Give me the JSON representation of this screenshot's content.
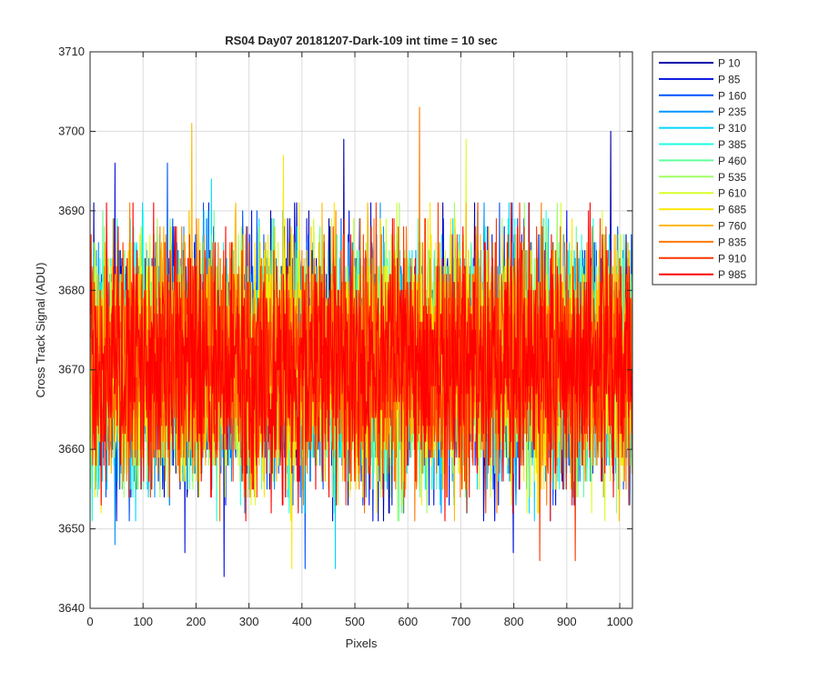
{
  "chart_data": {
    "type": "line",
    "title": "RS04 Day07 20181207-Dark-109 int time = 10 sec",
    "xlabel": "Pixels",
    "ylabel": "Cross Track Signal (ADU)",
    "xlim": [
      0,
      1024
    ],
    "ylim": [
      3640,
      3710
    ],
    "x_ticks": [
      0,
      100,
      200,
      300,
      400,
      500,
      600,
      700,
      800,
      900,
      1000
    ],
    "y_ticks": [
      3640,
      3650,
      3660,
      3670,
      3680,
      3690,
      3700,
      3710
    ],
    "grid": true,
    "legend_position": "outside-right-top",
    "n_points": 1024,
    "series": [
      {
        "name": "P 10",
        "color": "#0000a8",
        "mean": 3671,
        "sd": 7.5,
        "peak_high": [
          [
            478,
            3699
          ],
          [
            982,
            3700
          ]
        ],
        "peak_low": []
      },
      {
        "name": "P 85",
        "color": "#0010e0",
        "mean": 3671,
        "sd": 7.5,
        "peak_high": [
          [
            46,
            3696
          ]
        ],
        "peak_low": [
          [
            252,
            3644
          ],
          [
            178,
            3647
          ],
          [
            798,
            3647
          ]
        ]
      },
      {
        "name": "P 160",
        "color": "#0052ff",
        "mean": 3671,
        "sd": 7.5,
        "peak_high": [
          [
            145,
            3696
          ]
        ],
        "peak_low": [
          [
            405,
            3645
          ]
        ]
      },
      {
        "name": "P 235",
        "color": "#0096ff",
        "mean": 3671,
        "sd": 7.5,
        "peak_high": [],
        "peak_low": [
          [
            46,
            3648
          ]
        ]
      },
      {
        "name": "P 310",
        "color": "#00d7ff",
        "mean": 3671,
        "sd": 7.5,
        "peak_high": [
          [
            228,
            3694
          ]
        ],
        "peak_low": [
          [
            462,
            3645
          ]
        ]
      },
      {
        "name": "P 385",
        "color": "#1cffe3",
        "mean": 3671,
        "sd": 7.5,
        "peak_high": [],
        "peak_low": []
      },
      {
        "name": "P 460",
        "color": "#62ff9d",
        "mean": 3671,
        "sd": 7.5,
        "peak_high": [],
        "peak_low": []
      },
      {
        "name": "P 535",
        "color": "#9dff62",
        "mean": 3671,
        "sd": 7.5,
        "peak_high": [],
        "peak_low": []
      },
      {
        "name": "P 610",
        "color": "#d7ff28",
        "mean": 3671,
        "sd": 7.5,
        "peak_high": [
          [
            709,
            3699
          ]
        ],
        "peak_low": []
      },
      {
        "name": "P 685",
        "color": "#ffe600",
        "mean": 3671,
        "sd": 7.5,
        "peak_high": [
          [
            364,
            3697
          ]
        ],
        "peak_low": [
          [
            380,
            3645
          ]
        ]
      },
      {
        "name": "P 760",
        "color": "#ffb900",
        "mean": 3671,
        "sd": 7.5,
        "peak_high": [
          [
            191,
            3701
          ]
        ],
        "peak_low": []
      },
      {
        "name": "P 835",
        "color": "#ff7800",
        "mean": 3671,
        "sd": 7.5,
        "peak_high": [
          [
            621,
            3703
          ]
        ],
        "peak_low": []
      },
      {
        "name": "P 910",
        "color": "#ff3700",
        "mean": 3671,
        "sd": 7.5,
        "peak_high": [],
        "peak_low": [
          [
            848,
            3646
          ],
          [
            915,
            3646
          ]
        ]
      },
      {
        "name": "P 985",
        "color": "#ff0000",
        "mean": 3671,
        "sd": 7.5,
        "peak_high": [],
        "peak_low": []
      }
    ]
  }
}
